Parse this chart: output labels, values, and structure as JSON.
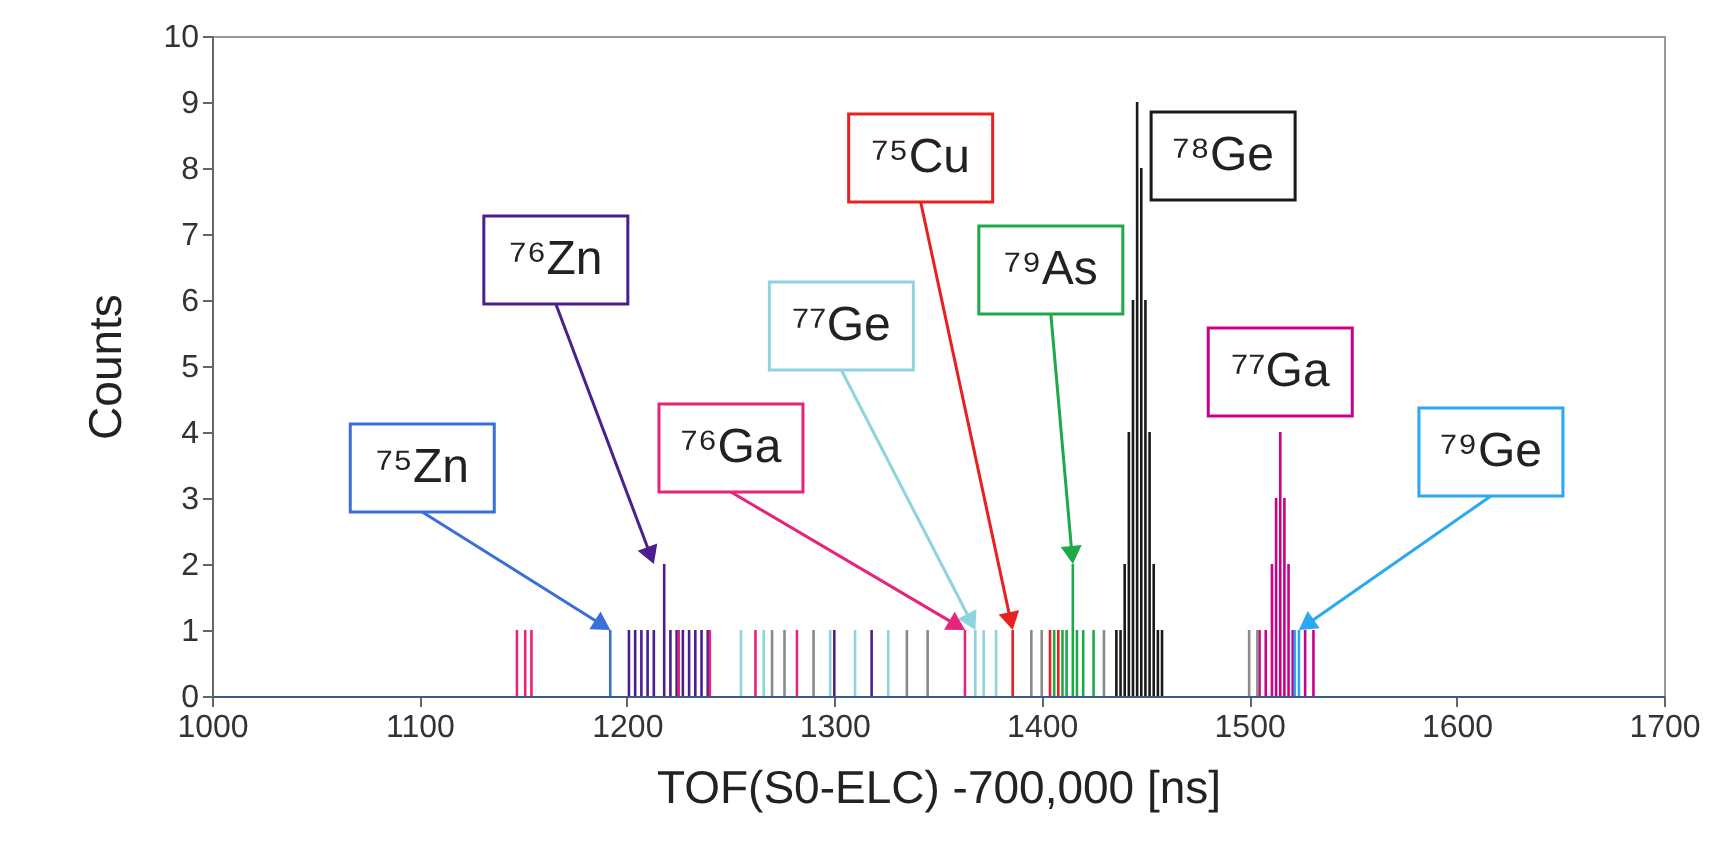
{
  "chart_data": {
    "type": "bar",
    "xlabel": "TOF(S0-ELC) -700,000 [ns]",
    "ylabel": "Counts",
    "xlim": [
      1000,
      1700
    ],
    "xticks": [
      1000,
      1100,
      1200,
      1300,
      1400,
      1500,
      1600,
      1700
    ],
    "ylim": [
      0,
      10
    ],
    "yticks": [
      0,
      1,
      2,
      3,
      4,
      5,
      6,
      7,
      8,
      9,
      10
    ],
    "grid": false,
    "series": [
      {
        "color": "#3a6fd8",
        "x": [
          1192
        ],
        "values": [
          1
        ]
      },
      {
        "color": "#4b1f8f",
        "x": [
          1201,
          1204,
          1207,
          1210,
          1213,
          1218,
          1221,
          1224,
          1227,
          1230,
          1233,
          1236,
          1239,
          1300,
          1318
        ],
        "values": [
          1,
          1,
          1,
          1,
          1,
          2,
          1,
          1,
          1,
          1,
          1,
          1,
          1,
          1,
          1
        ]
      },
      {
        "color": "#e5247a",
        "x": [
          1147,
          1151,
          1154,
          1225,
          1240,
          1262,
          1282,
          1363
        ],
        "values": [
          1,
          1,
          1,
          1,
          1,
          1,
          1,
          1
        ]
      },
      {
        "color": "#8fd3dc",
        "x": [
          1255,
          1266,
          1298,
          1310,
          1326,
          1368,
          1372,
          1378
        ],
        "values": [
          1,
          1,
          1,
          1,
          1,
          1,
          1,
          1
        ]
      },
      {
        "color": "#e8201f",
        "x": [
          1386,
          1404,
          1408
        ],
        "values": [
          1,
          1,
          1
        ]
      },
      {
        "color": "#1fa84a",
        "x": [
          1406,
          1410,
          1412,
          1415,
          1417,
          1420,
          1425
        ],
        "values": [
          1,
          1,
          1,
          2,
          1,
          1,
          1
        ]
      },
      {
        "color": "#1a1a1a",
        "x": [
          1436,
          1438,
          1440,
          1442,
          1444,
          1446,
          1448,
          1450,
          1452,
          1454,
          1456,
          1458
        ],
        "values": [
          1,
          1,
          2,
          4,
          6,
          9,
          8,
          6,
          4,
          2,
          1,
          1
        ]
      },
      {
        "color": "#cc0088",
        "x": [
          1505,
          1508,
          1511,
          1513,
          1515,
          1517,
          1519,
          1521,
          1527,
          1531
        ],
        "values": [
          1,
          1,
          2,
          3,
          4,
          3,
          2,
          1,
          1,
          1
        ]
      },
      {
        "color": "#2aa8f0",
        "x": [
          1522,
          1524
        ],
        "values": [
          1,
          1
        ]
      },
      {
        "color": "#8a8a8a",
        "x": [
          1270,
          1276,
          1290,
          1335,
          1345,
          1395,
          1400,
          1430,
          1500,
          1504
        ],
        "values": [
          1,
          1,
          1,
          1,
          1,
          1,
          1,
          1,
          1,
          1
        ]
      }
    ],
    "annotations": [
      {
        "text": "⁷⁵Zn",
        "x": 1192,
        "y": 1
      },
      {
        "text": "⁷⁶Zn",
        "x": 1213,
        "y": 2
      },
      {
        "text": "⁷⁶Ga",
        "x": 1363,
        "y": 1
      },
      {
        "text": "⁷⁷Ge",
        "x": 1368,
        "y": 1
      },
      {
        "text": "⁷⁵Cu",
        "x": 1386,
        "y": 1
      },
      {
        "text": "⁷⁹As",
        "x": 1415,
        "y": 2
      },
      {
        "text": "⁷⁸Ge",
        "x": 1446,
        "y": 9
      },
      {
        "text": "⁷⁷Ga",
        "x": 1515,
        "y": 4
      },
      {
        "text": "⁷⁹Ge",
        "x": 1524,
        "y": 1
      }
    ]
  }
}
